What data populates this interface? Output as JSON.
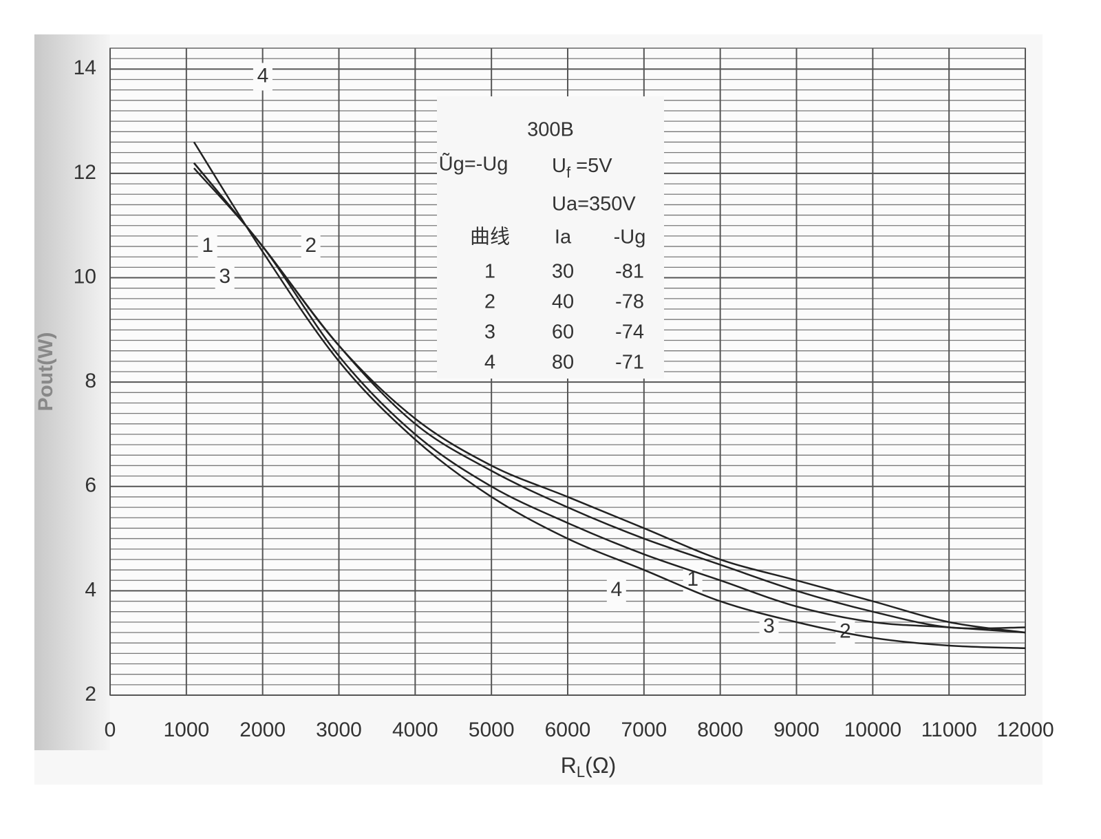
{
  "chart_data": {
    "type": "line",
    "ylabel": "Pout(W)",
    "xlabel": {
      "base": "R",
      "sub": "L",
      "rest": "(Ω)"
    },
    "x": [
      1100,
      2000,
      3000,
      4000,
      5000,
      6000,
      7000,
      8000,
      9000,
      10000,
      11000,
      12000
    ],
    "series": [
      {
        "name": "1",
        "color": "#222222",
        "values": [
          12.2,
          10.6,
          8.7,
          7.3,
          6.4,
          5.8,
          5.2,
          4.6,
          4.2,
          3.8,
          3.4,
          3.2
        ]
      },
      {
        "name": "2",
        "color": "#222222",
        "values": [
          12.2,
          10.6,
          8.7,
          7.2,
          6.3,
          5.6,
          5.0,
          4.5,
          4.0,
          3.6,
          3.3,
          3.3
        ]
      },
      {
        "name": "3",
        "color": "#222222",
        "values": [
          12.1,
          10.6,
          8.5,
          7.0,
          6.0,
          5.3,
          4.7,
          4.2,
          3.7,
          3.4,
          3.3,
          3.2
        ]
      },
      {
        "name": "4",
        "color": "#222222",
        "values": [
          12.6,
          10.5,
          8.4,
          6.9,
          5.8,
          5.0,
          4.4,
          3.8,
          3.4,
          3.1,
          2.95,
          2.9
        ]
      }
    ],
    "xlim": [
      0,
      12000
    ],
    "ylim": [
      2,
      14.4
    ],
    "xticks": [
      0,
      1000,
      2000,
      3000,
      4000,
      5000,
      6000,
      7000,
      8000,
      9000,
      10000,
      11000,
      12000
    ],
    "yticks": [
      2,
      4,
      6,
      8,
      10,
      12,
      14
    ],
    "minor_y_step": 0.2,
    "grid": true,
    "info": {
      "title": "300B",
      "condition": "Ũg=-Ug",
      "uf": {
        "base": "U",
        "sub": "f",
        "rest": " =5V"
      },
      "ua": "Ua=350V",
      "columns": [
        "曲线",
        "Ia",
        "-Ug"
      ],
      "rows": [
        [
          1,
          30,
          -81
        ],
        [
          2,
          40,
          -78
        ],
        [
          3,
          60,
          -74
        ],
        [
          4,
          80,
          -71
        ]
      ]
    }
  }
}
